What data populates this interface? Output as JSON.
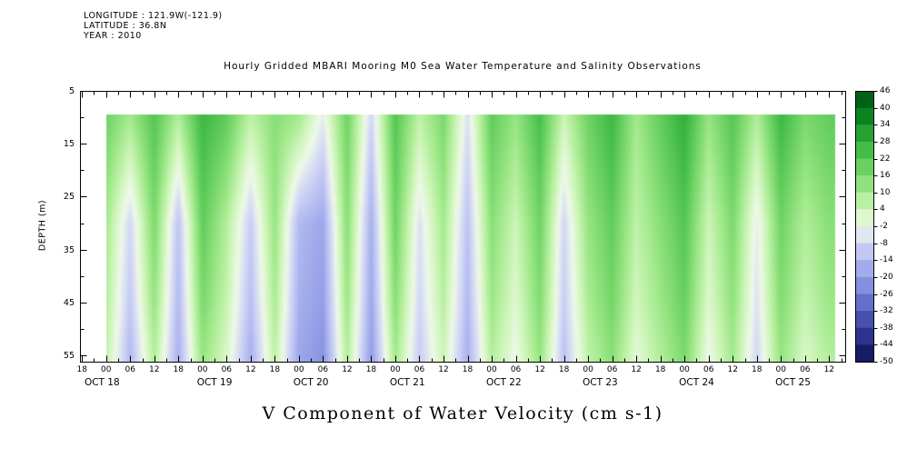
{
  "header": {
    "meta_lines": [
      "LONGITUDE : 121.9W(-121.9)",
      "LATITUDE : 36.8N",
      "YEAR : 2010"
    ]
  },
  "chart_data": {
    "type": "heatmap",
    "title": "Hourly Gridded MBARI Mooring M0 Sea Water Temperature and Salinity Observations",
    "caption": "V Component of Water Velocity (cm s-1)",
    "ylabel": "DEPTH (m)",
    "value_units": "cm s-1",
    "y_ticks": [
      5,
      15,
      25,
      35,
      45,
      55
    ],
    "y_minor_ticks": [
      10,
      20,
      30,
      40,
      50
    ],
    "y_range": [
      5,
      56.2
    ],
    "x_range_hours": [
      -6.5,
      184
    ],
    "x_hour_tick_start": -6,
    "x_hour_tick_step": 6,
    "x_hour_tick_labels": [
      "18",
      "00",
      "06",
      "12",
      "18",
      "00",
      "06",
      "12",
      "18",
      "00",
      "06",
      "12",
      "18",
      "00",
      "06",
      "12",
      "18",
      "00",
      "06",
      "12",
      "18",
      "00",
      "06",
      "12",
      "18",
      "00",
      "06",
      "12",
      "18",
      "00",
      "06",
      "12"
    ],
    "x_date_labels": [
      {
        "label": "OCT 18",
        "hour": -1
      },
      {
        "label": "OCT 19",
        "hour": 27
      },
      {
        "label": "OCT 20",
        "hour": 51
      },
      {
        "label": "OCT 21",
        "hour": 75
      },
      {
        "label": "OCT 22",
        "hour": 99
      },
      {
        "label": "OCT 23",
        "hour": 123
      },
      {
        "label": "OCT 24",
        "hour": 147
      },
      {
        "label": "OCT 25",
        "hour": 171
      }
    ],
    "data_extent": {
      "hours": [
        0,
        181.5
      ],
      "depth": [
        9.4,
        56.2
      ]
    },
    "colorbar": {
      "tick_values": [
        46,
        40,
        34,
        28,
        22,
        16,
        10,
        4,
        -2,
        -8,
        -14,
        -20,
        -26,
        -32,
        -38,
        -44,
        -50
      ],
      "tick_colors": [
        "#00500f",
        "#007318",
        "#169328",
        "#33b13c",
        "#55c653",
        "#7cd96e",
        "#a4ea8e",
        "#cdf5b8",
        "#eef9e8",
        "#d2d6f6",
        "#b2baf0",
        "#939ee6",
        "#747fd6",
        "#5560c0",
        "#39409e",
        "#20267c",
        "#0c1254"
      ]
    },
    "grid": {
      "hours": [
        0,
        6,
        12,
        18,
        24,
        30,
        36,
        42,
        48,
        54,
        60,
        66,
        72,
        78,
        84,
        90,
        96,
        102,
        108,
        114,
        120,
        126,
        132,
        138,
        144,
        150,
        156,
        162,
        168,
        174,
        180
      ],
      "depths_m": [
        10,
        20,
        30,
        45,
        55
      ],
      "values_cm_s": [
        [
          18,
          10,
          22,
          8,
          26,
          20,
          6,
          14,
          10,
          -4,
          18,
          -8,
          22,
          6,
          16,
          -6,
          20,
          12,
          24,
          4,
          18,
          26,
          10,
          20,
          28,
          12,
          22,
          8,
          26,
          16,
          20
        ],
        [
          14,
          1,
          19,
          -2,
          23,
          14,
          -2,
          13,
          -2,
          -11,
          16,
          -12,
          20,
          0,
          13,
          -9,
          17,
          8,
          21,
          -2,
          15,
          23,
          8,
          17,
          25,
          8,
          19,
          2,
          22,
          12,
          17
        ],
        [
          10,
          -8,
          16,
          -12,
          20,
          8,
          -10,
          12,
          -14,
          -18,
          14,
          -16,
          18,
          -6,
          10,
          -12,
          14,
          4,
          18,
          -8,
          12,
          20,
          6,
          14,
          22,
          4,
          16,
          -4,
          18,
          8,
          14
        ],
        [
          8,
          -11,
          12,
          -14,
          16,
          5,
          -13,
          9,
          -16,
          -20,
          11,
          -18,
          14,
          -8,
          7,
          -14,
          11,
          1,
          15,
          -10,
          9,
          17,
          3,
          11,
          19,
          1,
          13,
          -6,
          15,
          5,
          11
        ],
        [
          6,
          -14,
          8,
          -16,
          12,
          2,
          -16,
          6,
          -18,
          -22,
          8,
          -20,
          10,
          -10,
          4,
          -16,
          8,
          -2,
          12,
          -12,
          6,
          14,
          0,
          8,
          16,
          -2,
          10,
          -8,
          12,
          2,
          8
        ]
      ]
    }
  },
  "colors": {
    "background": "#ffffff",
    "axis": "#000000",
    "text": "#000000"
  }
}
